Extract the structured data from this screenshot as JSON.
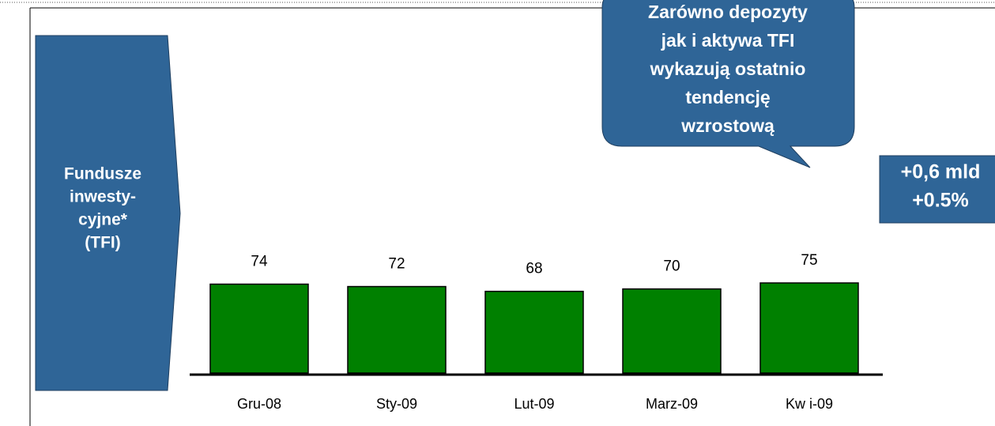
{
  "chart_data": {
    "type": "bar",
    "categories": [
      "Gru-08",
      "Sty-09",
      "Lut-09",
      "Marz-09",
      "Kw i-09"
    ],
    "values": [
      74,
      72,
      68,
      70,
      75
    ],
    "color": "#008000",
    "side_label": [
      "Fundusze",
      "inwesty-",
      "cyjne*",
      "(TFI)"
    ],
    "callout": [
      "Zarówno depozyty",
      "jak i aktywa TFI",
      "wykazują ostatnio",
      "tendencję",
      "wzrostową"
    ],
    "change_box": [
      "+0,6 mld",
      "+0.5%"
    ]
  }
}
